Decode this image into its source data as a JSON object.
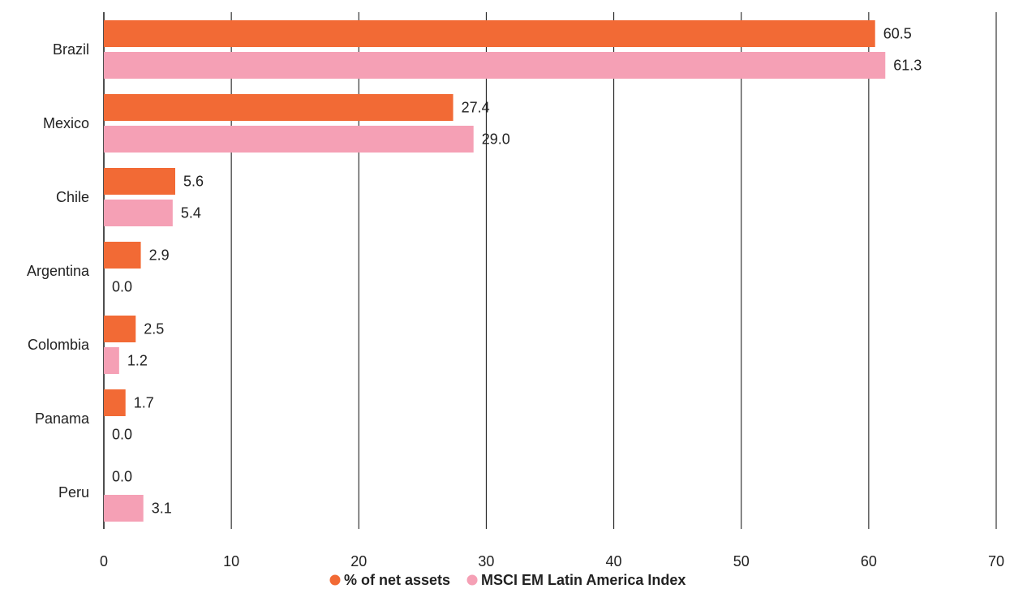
{
  "chart_data": {
    "type": "bar",
    "orientation": "horizontal",
    "categories": [
      "Brazil",
      "Mexico",
      "Chile",
      "Argentina",
      "Colombia",
      "Panama",
      "Peru"
    ],
    "series": [
      {
        "name": "% of net assets",
        "color": "#f26a35",
        "values": [
          60.5,
          27.4,
          5.6,
          2.9,
          2.5,
          1.7,
          0.0
        ],
        "labels": [
          "60.5",
          "27.4",
          "5.6",
          "2.9",
          "2.5",
          "1.7",
          "0.0"
        ]
      },
      {
        "name": "MSCI EM Latin America Index",
        "color": "#f5a0b5",
        "values": [
          61.3,
          29.0,
          5.4,
          0.0,
          1.2,
          0.0,
          3.1
        ],
        "labels": [
          "61.3",
          "29.0",
          "5.4",
          "0.0",
          "1.2",
          "0.0",
          "3.1"
        ]
      }
    ],
    "xticks": [
      "0",
      "10",
      "20",
      "30",
      "40",
      "50",
      "60",
      "70"
    ],
    "xlim": [
      0,
      70
    ],
    "grid": "vertical",
    "legend": "bottom-center"
  }
}
